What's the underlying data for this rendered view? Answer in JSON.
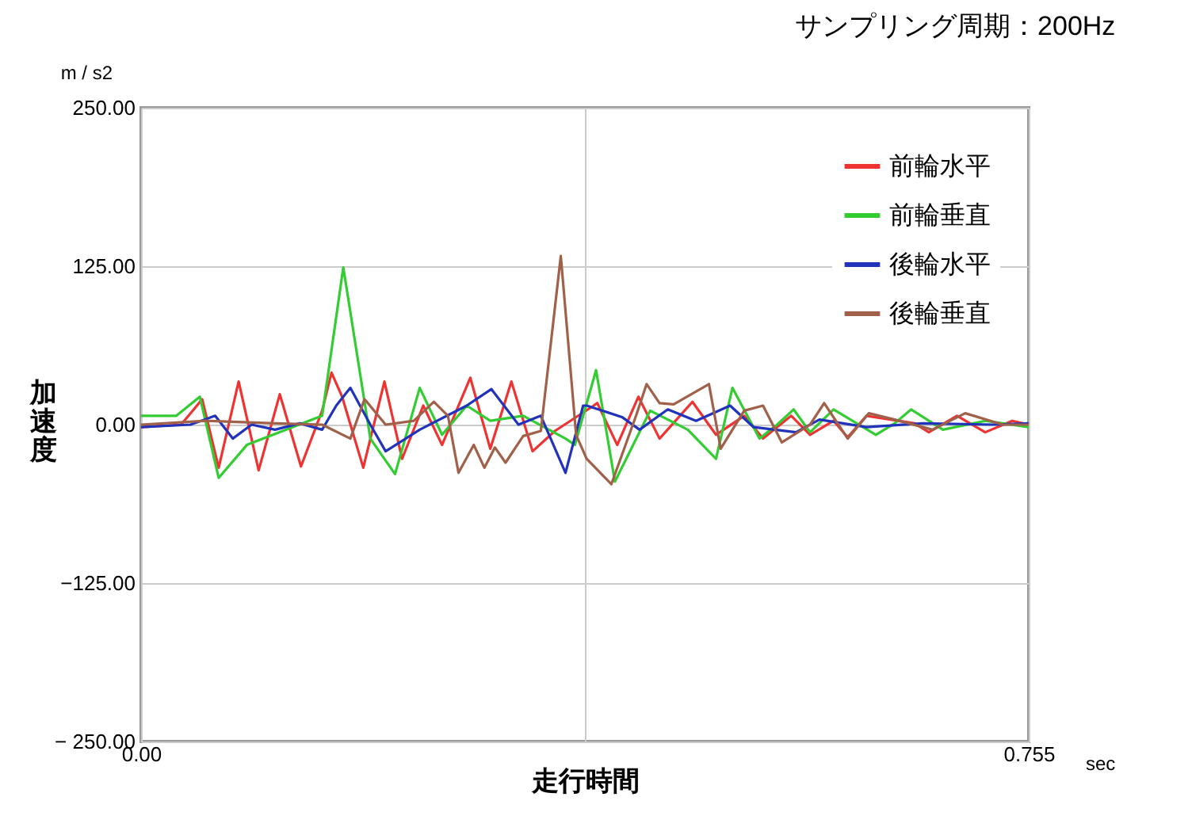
{
  "chart_data": {
    "type": "line",
    "title": "サンプリング周期：200Hz",
    "xlabel": "走行時間",
    "ylabel": "加速度",
    "annotations": [
      "m / s2",
      "sec"
    ],
    "xlim": [
      0,
      0.755
    ],
    "xticks": [
      {
        "value": 0,
        "label": "0.00"
      },
      {
        "value": 0.3775,
        "label": null
      },
      {
        "value": 0.755,
        "label": "0.755"
      }
    ],
    "ylim": [
      -250,
      250
    ],
    "yticks": [
      {
        "value": -250,
        "label": "− 250.00"
      },
      {
        "value": -125,
        "label": "−125.00"
      },
      {
        "value": 0,
        "label": "0.00"
      },
      {
        "value": 125,
        "label": "125.00"
      },
      {
        "value": 250,
        "label": "250.00"
      }
    ],
    "grid": true,
    "legend": "top right",
    "line_style": "solid",
    "marker": "none",
    "series": [
      {
        "name": "前輪水平",
        "color": "#ee3333",
        "x": [
          0,
          0.034,
          0.052,
          0.066,
          0.083,
          0.1,
          0.118,
          0.136,
          0.154,
          0.162,
          0.171,
          0.189,
          0.207,
          0.222,
          0.24,
          0.256,
          0.28,
          0.297,
          0.315,
          0.333,
          0.352,
          0.385,
          0.388,
          0.405,
          0.423,
          0.441,
          0.469,
          0.489,
          0.513,
          0.529,
          0.553,
          0.569,
          0.589,
          0.601,
          0.617,
          0.658,
          0.67,
          0.694,
          0.718,
          0.741,
          0.755
        ],
        "values": [
          -2,
          0,
          20,
          -34,
          34,
          -36,
          24,
          -33,
          11,
          41,
          22,
          -34,
          34,
          -27,
          15,
          -16,
          37,
          -19,
          34,
          -21,
          -5,
          15,
          17,
          -16,
          22,
          -11,
          18,
          -8,
          7,
          -11,
          7,
          -8,
          3,
          -10,
          7,
          1,
          -6,
          7,
          -6,
          3,
          0
        ]
      },
      {
        "name": "前輪垂直",
        "color": "#33cc33",
        "x": [
          0,
          0.03,
          0.05,
          0.066,
          0.09,
          0.154,
          0.172,
          0.195,
          0.216,
          0.237,
          0.256,
          0.277,
          0.297,
          0.325,
          0.361,
          0.369,
          0.387,
          0.403,
          0.433,
          0.465,
          0.489,
          0.503,
          0.526,
          0.541,
          0.555,
          0.569,
          0.589,
          0.625,
          0.641,
          0.655,
          0.682,
          0.718,
          0.755
        ],
        "values": [
          7,
          7,
          22,
          -42,
          -16,
          7,
          124,
          -11,
          -39,
          29,
          -8,
          15,
          3,
          7,
          -11,
          -16,
          43,
          -45,
          11,
          -4,
          -27,
          29,
          -11,
          0,
          12,
          -6,
          12,
          -8,
          1,
          12,
          -4,
          3,
          -2
        ]
      },
      {
        "name": "後輪水平",
        "color": "#2233bb",
        "x": [
          0,
          0.042,
          0.063,
          0.078,
          0.094,
          0.114,
          0.135,
          0.154,
          0.166,
          0.178,
          0.195,
          0.208,
          0.237,
          0.277,
          0.298,
          0.321,
          0.34,
          0.361,
          0.376,
          0.379,
          0.409,
          0.424,
          0.448,
          0.472,
          0.501,
          0.521,
          0.557,
          0.577,
          0.617,
          0.665,
          0.725,
          0.755
        ],
        "values": [
          -2,
          0,
          7,
          -11,
          0,
          -4,
          1,
          -4,
          15,
          29,
          0,
          -21,
          -4,
          15,
          28,
          0,
          7,
          -38,
          15,
          15,
          6,
          -4,
          12,
          3,
          15,
          -2,
          -6,
          4,
          -2,
          1,
          0,
          1
        ]
      },
      {
        "name": "後輪垂直",
        "color": "#a0604a",
        "x": [
          0,
          0.054,
          0.114,
          0.154,
          0.178,
          0.19,
          0.192,
          0.208,
          0.232,
          0.249,
          0.261,
          0.27,
          0.283,
          0.292,
          0.301,
          0.31,
          0.325,
          0.34,
          0.357,
          0.37,
          0.379,
          0.4,
          0.421,
          0.43,
          0.441,
          0.453,
          0.483,
          0.493,
          0.513,
          0.529,
          0.545,
          0.569,
          0.581,
          0.601,
          0.619,
          0.641,
          0.673,
          0.701,
          0.733,
          0.755
        ],
        "values": [
          0,
          3,
          1,
          0,
          -11,
          20,
          18,
          0,
          3,
          18,
          7,
          -38,
          -16,
          -34,
          -18,
          -30,
          -9,
          -5,
          133,
          -8,
          -27,
          -47,
          7,
          32,
          17,
          16,
          32,
          -19,
          11,
          15,
          -14,
          0,
          17,
          -11,
          9,
          4,
          -4,
          9,
          0,
          0
        ]
      }
    ]
  }
}
